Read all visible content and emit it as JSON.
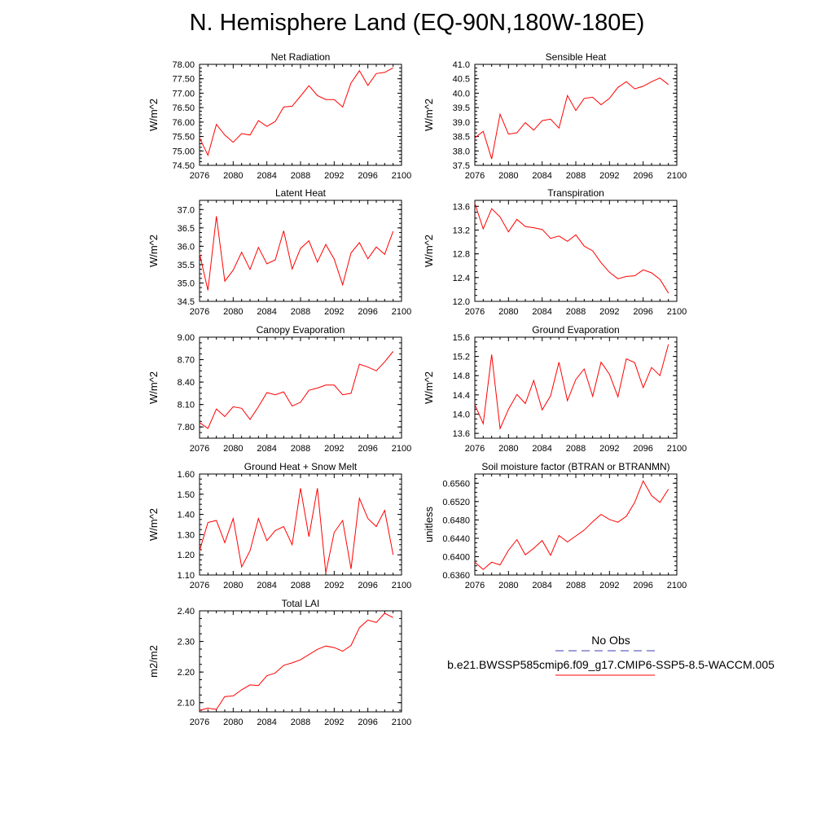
{
  "title": "N. Hemisphere Land (EQ-90N,180W-180E)",
  "colors": {
    "model": "#ff0000",
    "obs": "#3c3cb4",
    "axis": "#000000"
  },
  "legend": {
    "obs_label": "No Obs",
    "model_label": "b.e21.BWSSP585cmip6.f09_g17.CMIP6-SSP5-8.5-WACCM.005"
  },
  "chart_data": [
    {
      "type": "line",
      "title": "Net Radiation",
      "ylabel": "W/m^2",
      "xlim": [
        2076,
        2100
      ],
      "ylim": [
        74.5,
        78.0
      ],
      "xticks": [
        "2076",
        "2080",
        "2084",
        "2088",
        "2092",
        "2096",
        "2100"
      ],
      "yticks": [
        "74.50",
        "75.00",
        "75.50",
        "76.00",
        "76.50",
        "77.00",
        "77.50",
        "78.00"
      ],
      "x": [
        2076,
        2077,
        2078,
        2079,
        2080,
        2081,
        2082,
        2083,
        2084,
        2085,
        2086,
        2087,
        2088,
        2089,
        2090,
        2091,
        2092,
        2093,
        2094,
        2095,
        2096,
        2097,
        2098,
        2099
      ],
      "values": [
        75.45,
        74.85,
        75.92,
        75.55,
        75.3,
        75.6,
        75.55,
        76.05,
        75.85,
        76.02,
        76.52,
        76.55,
        76.9,
        77.26,
        76.92,
        76.78,
        76.78,
        76.52,
        77.35,
        77.78,
        77.27,
        77.68,
        77.72,
        77.88
      ]
    },
    {
      "type": "line",
      "title": "Sensible Heat",
      "ylabel": "W/m^2",
      "xlim": [
        2076,
        2100
      ],
      "ylim": [
        37.5,
        41.0
      ],
      "xticks": [
        "2076",
        "2080",
        "2084",
        "2088",
        "2092",
        "2096",
        "2100"
      ],
      "yticks": [
        "37.5",
        "38.0",
        "38.5",
        "39.0",
        "39.5",
        "40.0",
        "40.5",
        "41.0"
      ],
      "x": [
        2076,
        2077,
        2078,
        2079,
        2080,
        2081,
        2082,
        2083,
        2084,
        2085,
        2086,
        2087,
        2088,
        2089,
        2090,
        2091,
        2092,
        2093,
        2094,
        2095,
        2096,
        2097,
        2098,
        2099
      ],
      "values": [
        38.45,
        38.68,
        37.72,
        39.27,
        38.58,
        38.63,
        38.98,
        38.72,
        39.05,
        39.1,
        38.79,
        39.92,
        39.4,
        39.82,
        39.86,
        39.6,
        39.82,
        40.2,
        40.4,
        40.15,
        40.24,
        40.4,
        40.53,
        40.3
      ]
    },
    {
      "type": "line",
      "title": "Latent Heat",
      "ylabel": "W/m^2",
      "xlim": [
        2076,
        2100
      ],
      "ylim": [
        34.5,
        37.25
      ],
      "xticks": [
        "2076",
        "2080",
        "2084",
        "2088",
        "2092",
        "2096",
        "2100"
      ],
      "yticks": [
        "34.5",
        "35.0",
        "35.5",
        "36.0",
        "36.5",
        "37.0"
      ],
      "x": [
        2076,
        2077,
        2078,
        2079,
        2080,
        2081,
        2082,
        2083,
        2084,
        2085,
        2086,
        2087,
        2088,
        2089,
        2090,
        2091,
        2092,
        2093,
        2094,
        2095,
        2096,
        2097,
        2098,
        2099
      ],
      "values": [
        35.8,
        34.8,
        36.82,
        35.05,
        35.35,
        35.84,
        35.37,
        35.97,
        35.52,
        35.63,
        36.42,
        35.38,
        35.94,
        36.15,
        35.57,
        36.05,
        35.65,
        34.95,
        35.82,
        36.1,
        35.66,
        35.98,
        35.78,
        36.41
      ]
    },
    {
      "type": "line",
      "title": "Transpiration",
      "ylabel": "W/m^2",
      "xlim": [
        2076,
        2100
      ],
      "ylim": [
        12.0,
        13.7
      ],
      "xticks": [
        "2076",
        "2080",
        "2084",
        "2088",
        "2092",
        "2096",
        "2100"
      ],
      "yticks": [
        "12.0",
        "12.4",
        "12.8",
        "13.2",
        "13.6"
      ],
      "x": [
        2076,
        2077,
        2078,
        2079,
        2080,
        2081,
        2082,
        2083,
        2084,
        2085,
        2086,
        2087,
        2088,
        2089,
        2090,
        2091,
        2092,
        2093,
        2094,
        2095,
        2096,
        2097,
        2098,
        2099
      ],
      "values": [
        13.65,
        13.22,
        13.56,
        13.42,
        13.17,
        13.38,
        13.26,
        13.24,
        13.21,
        13.06,
        13.1,
        13.01,
        13.12,
        12.93,
        12.85,
        12.65,
        12.49,
        12.38,
        12.42,
        12.43,
        12.53,
        12.48,
        12.37,
        12.14
      ]
    },
    {
      "type": "line",
      "title": "Canopy Evaporation",
      "ylabel": "W/m^2",
      "xlim": [
        2076,
        2100
      ],
      "ylim": [
        7.65,
        9.0
      ],
      "xticks": [
        "2076",
        "2080",
        "2084",
        "2088",
        "2092",
        "2096",
        "2100"
      ],
      "yticks": [
        "7.80",
        "8.10",
        "8.40",
        "8.70",
        "9.00"
      ],
      "x": [
        2076,
        2077,
        2078,
        2079,
        2080,
        2081,
        2082,
        2083,
        2084,
        2085,
        2086,
        2087,
        2088,
        2089,
        2090,
        2091,
        2092,
        2093,
        2094,
        2095,
        2096,
        2097,
        2098,
        2099
      ],
      "values": [
        7.86,
        7.78,
        8.04,
        7.94,
        8.07,
        8.05,
        7.9,
        8.07,
        8.26,
        8.23,
        8.27,
        8.08,
        8.13,
        8.29,
        8.32,
        8.36,
        8.36,
        8.23,
        8.25,
        8.64,
        8.6,
        8.55,
        8.67,
        8.81
      ]
    },
    {
      "type": "line",
      "title": "Ground Evaporation",
      "ylabel": "W/m^2",
      "xlim": [
        2076,
        2100
      ],
      "ylim": [
        13.5,
        15.6
      ],
      "xticks": [
        "2076",
        "2080",
        "2084",
        "2088",
        "2092",
        "2096",
        "2100"
      ],
      "yticks": [
        "13.6",
        "14.0",
        "14.4",
        "14.8",
        "15.2",
        "15.6"
      ],
      "x": [
        2076,
        2077,
        2078,
        2079,
        2080,
        2081,
        2082,
        2083,
        2084,
        2085,
        2086,
        2087,
        2088,
        2089,
        2090,
        2091,
        2092,
        2093,
        2094,
        2095,
        2096,
        2097,
        2098,
        2099
      ],
      "values": [
        14.2,
        13.8,
        15.24,
        13.7,
        14.1,
        14.41,
        14.22,
        14.7,
        14.09,
        14.38,
        15.08,
        14.28,
        14.72,
        14.94,
        14.37,
        15.08,
        14.83,
        14.36,
        15.15,
        15.07,
        14.55,
        14.97,
        14.8,
        15.45
      ]
    },
    {
      "type": "line",
      "title": "Ground Heat + Snow Melt",
      "ylabel": "W/m^2",
      "xlim": [
        2076,
        2100
      ],
      "ylim": [
        1.1,
        1.6
      ],
      "xticks": [
        "2076",
        "2080",
        "2084",
        "2088",
        "2092",
        "2096",
        "2100"
      ],
      "yticks": [
        "1.10",
        "1.20",
        "1.30",
        "1.40",
        "1.50",
        "1.60"
      ],
      "x": [
        2076,
        2077,
        2078,
        2079,
        2080,
        2081,
        2082,
        2083,
        2084,
        2085,
        2086,
        2087,
        2088,
        2089,
        2090,
        2091,
        2092,
        2093,
        2094,
        2095,
        2096,
        2097,
        2098,
        2099
      ],
      "values": [
        1.22,
        1.36,
        1.37,
        1.26,
        1.38,
        1.14,
        1.22,
        1.38,
        1.27,
        1.32,
        1.34,
        1.25,
        1.53,
        1.29,
        1.53,
        1.11,
        1.31,
        1.37,
        1.13,
        1.48,
        1.38,
        1.34,
        1.42,
        1.2
      ]
    },
    {
      "type": "line",
      "title": "Soil moisture factor (BTRAN or BTRANMN)",
      "ylabel": "unitless",
      "xlim": [
        2076,
        2100
      ],
      "ylim": [
        0.636,
        0.658
      ],
      "xticks": [
        "2076",
        "2080",
        "2084",
        "2088",
        "2092",
        "2096",
        "2100"
      ],
      "yticks": [
        "0.6360",
        "0.6400",
        "0.6440",
        "0.6480",
        "0.6520",
        "0.6560"
      ],
      "x": [
        2076,
        2077,
        2078,
        2079,
        2080,
        2081,
        2082,
        2083,
        2084,
        2085,
        2086,
        2087,
        2088,
        2089,
        2090,
        2091,
        2092,
        2093,
        2094,
        2095,
        2096,
        2097,
        2098,
        2099
      ],
      "values": [
        0.6388,
        0.6372,
        0.6388,
        0.6382,
        0.6414,
        0.6437,
        0.6404,
        0.6418,
        0.6435,
        0.6403,
        0.6446,
        0.6432,
        0.6445,
        0.6458,
        0.6476,
        0.6492,
        0.6481,
        0.6475,
        0.6488,
        0.6518,
        0.6565,
        0.6533,
        0.6518,
        0.6547
      ]
    },
    {
      "type": "line",
      "title": "Total LAI",
      "ylabel": "m2/m2",
      "xlim": [
        2076,
        2100
      ],
      "ylim": [
        2.07,
        2.4
      ],
      "xticks": [
        "2076",
        "2080",
        "2084",
        "2088",
        "2092",
        "2096",
        "2100"
      ],
      "yticks": [
        "2.10",
        "2.20",
        "2.30",
        "2.40"
      ],
      "x": [
        2076,
        2077,
        2078,
        2079,
        2080,
        2081,
        2082,
        2083,
        2084,
        2085,
        2086,
        2087,
        2088,
        2089,
        2090,
        2091,
        2092,
        2093,
        2094,
        2095,
        2096,
        2097,
        2098,
        2099
      ],
      "values": [
        2.075,
        2.082,
        2.078,
        2.12,
        2.122,
        2.142,
        2.158,
        2.156,
        2.188,
        2.197,
        2.222,
        2.23,
        2.24,
        2.257,
        2.274,
        2.285,
        2.28,
        2.268,
        2.287,
        2.345,
        2.37,
        2.362,
        2.392,
        2.378
      ]
    }
  ]
}
